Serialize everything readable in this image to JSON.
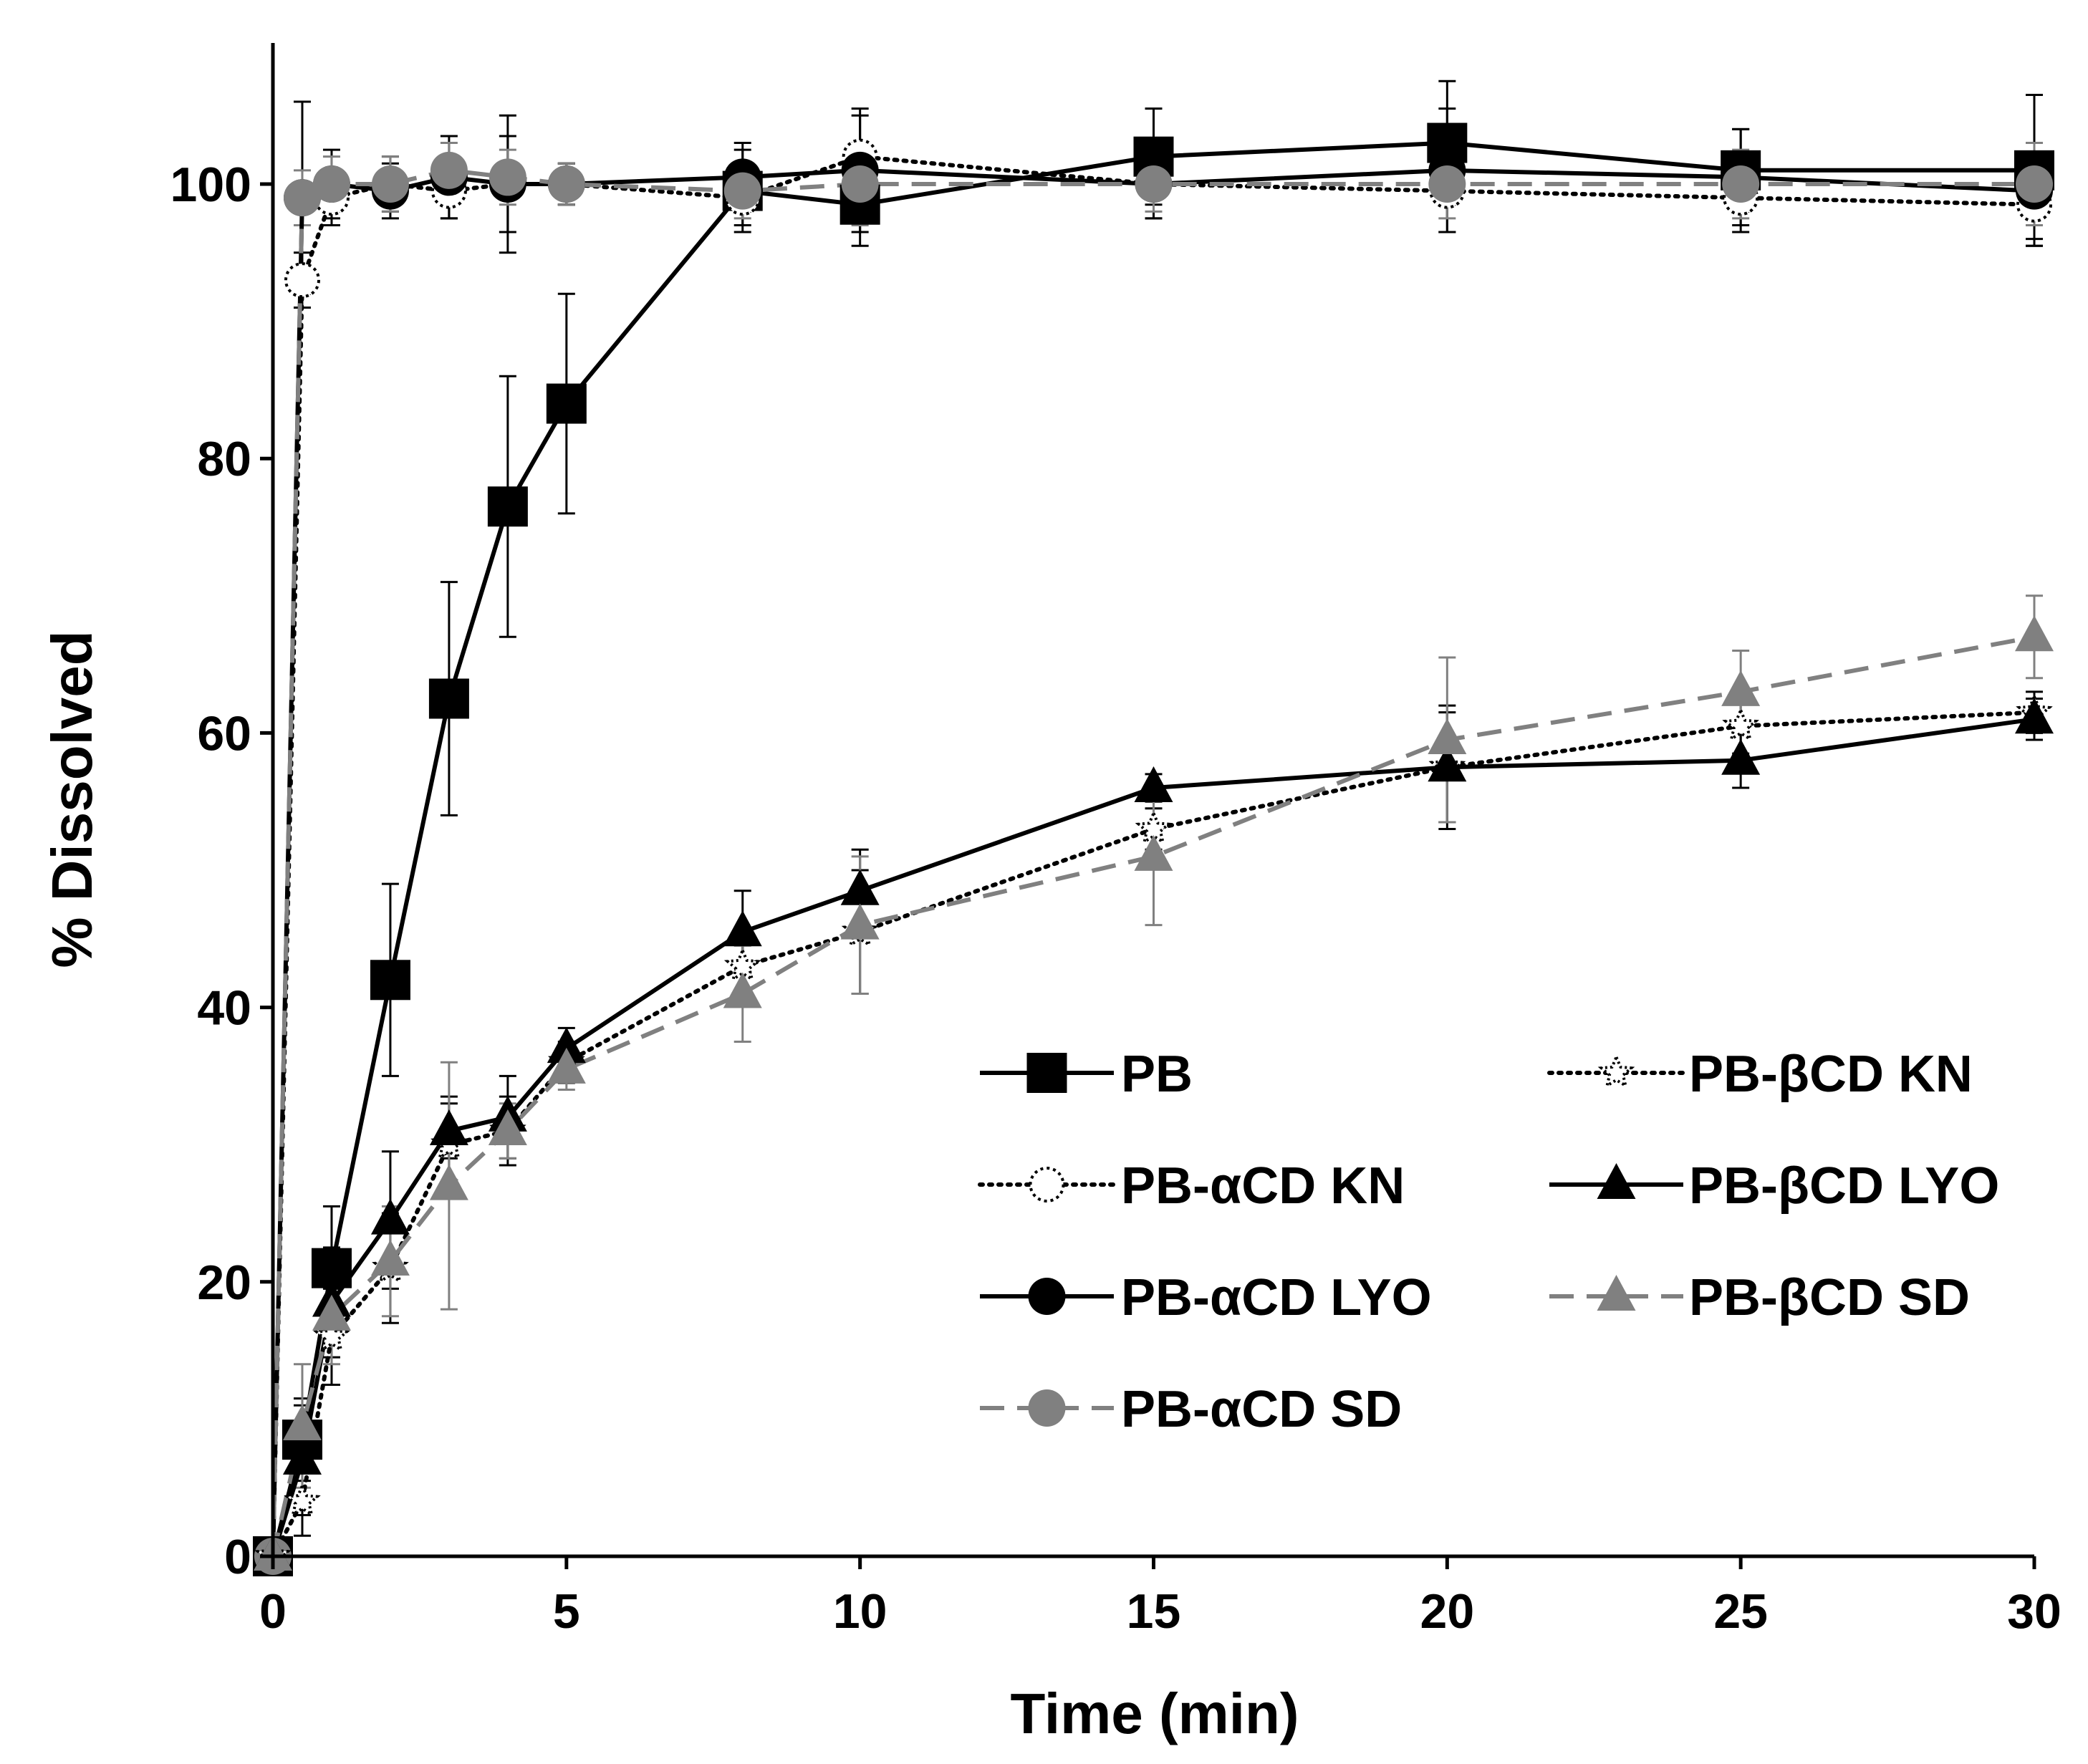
{
  "chart_data": {
    "type": "line",
    "title": "",
    "xlabel": "Time (min)",
    "ylabel": "% Dissolved",
    "xlim": [
      0,
      30
    ],
    "ylim": [
      0,
      110
    ],
    "xticks": [
      0,
      5,
      10,
      15,
      20,
      25,
      30
    ],
    "yticks": [
      0,
      20,
      40,
      60,
      80,
      100
    ],
    "xtick_labels": [
      "0",
      "5",
      "10",
      "15",
      "20",
      "25",
      "30"
    ],
    "ytick_labels": [
      "0",
      "20",
      "40",
      "60",
      "80",
      "100"
    ],
    "grid": false,
    "legend_position": "bottom-right",
    "series": [
      {
        "name": "PB",
        "marker": "square",
        "color": "#000000",
        "line": "solid",
        "x": [
          0,
          0.5,
          1,
          2,
          3,
          4,
          5,
          8,
          10,
          15,
          20,
          25,
          30
        ],
        "y": [
          0,
          8.5,
          21,
          42,
          62.5,
          76.5,
          84,
          99.5,
          98.5,
          102,
          103,
          101,
          101
        ],
        "err": [
          0,
          3,
          4.5,
          7,
          8.5,
          9.5,
          8,
          3,
          3,
          3.5,
          4.5,
          3,
          5.5
        ]
      },
      {
        "name": "PB-αCD KN",
        "marker": "circle-open",
        "color": "#000000",
        "line": "dotted",
        "x": [
          0,
          0.5,
          1,
          2,
          3,
          4,
          5,
          8,
          10,
          15,
          20,
          25,
          30
        ],
        "y": [
          0,
          93,
          99,
          100,
          99.5,
          100,
          100,
          99,
          102,
          100,
          99.5,
          99,
          98.5
        ],
        "err": [
          0,
          2,
          2,
          2,
          2,
          3.5,
          1.5,
          2,
          3,
          2.5,
          3,
          2.5,
          3
        ]
      },
      {
        "name": "PB-αCD LYO",
        "marker": "circle",
        "color": "#000000",
        "line": "solid",
        "x": [
          0,
          0.5,
          1,
          2,
          3,
          4,
          5,
          8,
          10,
          15,
          20,
          25,
          30
        ],
        "y": [
          0,
          99,
          100,
          99.5,
          100.5,
          100,
          100,
          100.5,
          101,
          100,
          101,
          100.5,
          99.5
        ],
        "err": [
          0,
          7,
          2.5,
          2,
          3,
          5,
          1.5,
          2.5,
          4.5,
          2.5,
          4.5,
          3.5,
          3.5
        ]
      },
      {
        "name": "PB-αCD SD",
        "marker": "circle",
        "color": "#808080",
        "line": "dashed",
        "x": [
          0,
          0.5,
          1,
          2,
          3,
          4,
          5,
          8,
          10,
          15,
          20,
          25,
          30
        ],
        "y": [
          0,
          99,
          100,
          100,
          101,
          100.5,
          100,
          99.5,
          100,
          100,
          100,
          100,
          100
        ],
        "err": [
          0,
          2,
          2,
          2,
          2,
          2,
          1.5,
          2,
          3,
          2,
          2.5,
          2.5,
          3
        ]
      },
      {
        "name": "PB-βCD KN",
        "marker": "star-open",
        "color": "#000000",
        "line": "dotted",
        "x": [
          0,
          0.5,
          1,
          2,
          3,
          4,
          5,
          8,
          10,
          15,
          20,
          25,
          30
        ],
        "y": [
          0,
          4,
          16,
          21,
          30,
          31,
          36,
          43,
          45.5,
          53,
          57.5,
          60.5,
          61.5
        ],
        "err": [
          0,
          2.5,
          3.5,
          4,
          3.5,
          2.5,
          1.5,
          2,
          4.5,
          1.5,
          4,
          2,
          1.5
        ]
      },
      {
        "name": "PB-βCD LYO",
        "marker": "triangle",
        "color": "#000000",
        "line": "solid",
        "x": [
          0,
          0.5,
          1,
          2,
          3,
          4,
          5,
          8,
          10,
          15,
          20,
          25,
          30
        ],
        "y": [
          0,
          7,
          18.5,
          24.5,
          31,
          32,
          37,
          45.5,
          48.5,
          56,
          57.5,
          58,
          61
        ],
        "err": [
          0,
          4,
          4,
          5,
          2,
          3,
          1.5,
          3,
          3,
          1,
          4.5,
          2,
          1.5
        ]
      },
      {
        "name": "PB-βCD SD",
        "marker": "triangle",
        "color": "#808080",
        "line": "dashed",
        "x": [
          0,
          0.5,
          1,
          2,
          3,
          4,
          5,
          8,
          10,
          15,
          20,
          25,
          30
        ],
        "y": [
          0,
          9.5,
          17.5,
          21.5,
          27,
          31,
          35.5,
          41,
          46,
          51,
          59.5,
          63,
          67
        ],
        "err": [
          0,
          4.5,
          3.5,
          4,
          9,
          2,
          1.5,
          3.5,
          5,
          5,
          6,
          3,
          3
        ]
      }
    ]
  }
}
